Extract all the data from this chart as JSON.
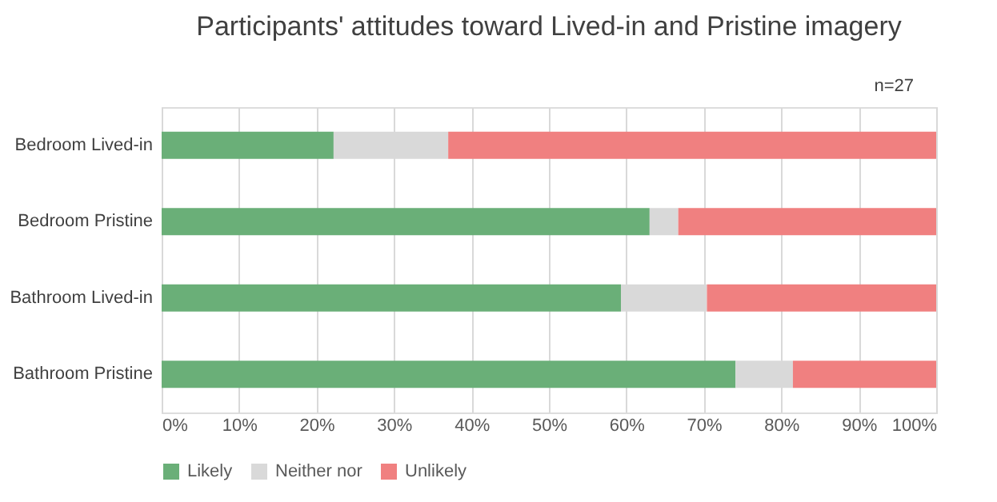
{
  "chart_data": {
    "type": "bar",
    "orientation": "horizontal",
    "stacked": true,
    "title": "Participants' attitudes toward Lived-in and Pristine imagery",
    "annotations": [
      "n=27"
    ],
    "categories": [
      "Bedroom Lived-in",
      "Bedroom Pristine",
      "Bathroom Lived-in",
      "Bathroom Pristine"
    ],
    "series": [
      {
        "name": "Likely",
        "color": "#6aaf78",
        "values": [
          22.2,
          63.0,
          59.3,
          74.1
        ]
      },
      {
        "name": "Neither nor",
        "color": "#d9d9d9",
        "values": [
          14.8,
          3.7,
          11.1,
          7.4
        ]
      },
      {
        "name": "Unlikely",
        "color": "#f08080",
        "values": [
          63.0,
          33.3,
          29.6,
          18.5
        ]
      }
    ],
    "xlim": [
      0,
      100
    ],
    "xticks": [
      {
        "value": 0,
        "label": "0%"
      },
      {
        "value": 10,
        "label": "10%"
      },
      {
        "value": 20,
        "label": "20%"
      },
      {
        "value": 30,
        "label": "30%"
      },
      {
        "value": 40,
        "label": "40%"
      },
      {
        "value": 50,
        "label": "50%"
      },
      {
        "value": 60,
        "label": "60%"
      },
      {
        "value": 70,
        "label": "70%"
      },
      {
        "value": 80,
        "label": "80%"
      },
      {
        "value": 90,
        "label": "90%"
      },
      {
        "value": 100,
        "label": "100%"
      }
    ],
    "grid": "x",
    "legend": "bottom"
  }
}
